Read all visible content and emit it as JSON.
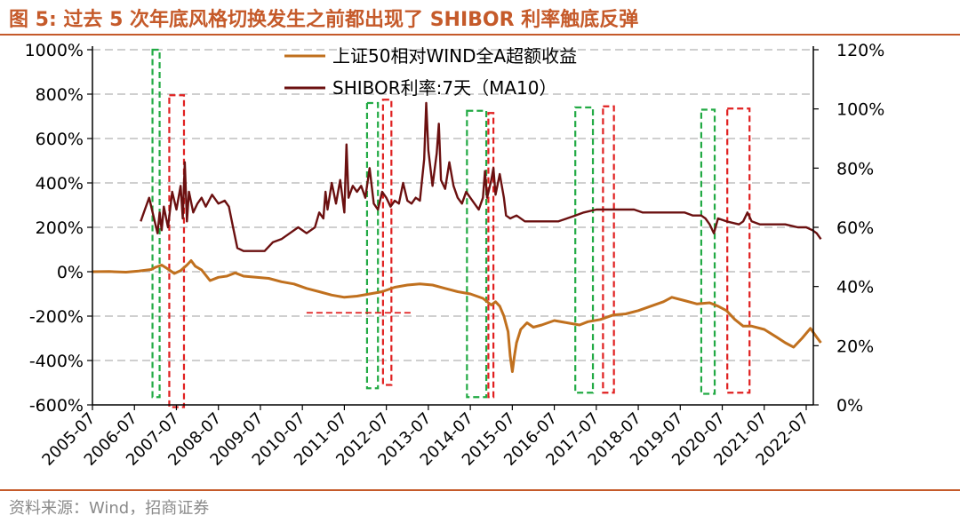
{
  "figure": {
    "title": "图 5:  过去 5 次年底风格切换发生之前都出现了 SHIBOR 利率触底反弹",
    "source": "资料来源：Wind，招商证券"
  },
  "colors": {
    "accent": "#c55a2a",
    "series_excess": "#c0701e",
    "series_shibor": "#6b1010",
    "box_green": "#22aa44",
    "box_red": "#e02020",
    "grid": "#bfbfbf"
  },
  "chart_data": {
    "type": "line",
    "left_axis": {
      "ticks": [
        "1000%",
        "800%",
        "600%",
        "400%",
        "200%",
        "0%",
        "-200%",
        "-400%",
        "-600%"
      ],
      "ylim": [
        -600,
        1000
      ]
    },
    "right_axis": {
      "ticks": [
        "120%",
        "100%",
        "80%",
        "60%",
        "40%",
        "20%",
        "0%"
      ],
      "ylim": [
        0,
        120
      ]
    },
    "x_ticks": [
      "2005-07",
      "2006-07",
      "2007-07",
      "2008-07",
      "2009-07",
      "2010-07",
      "2011-07",
      "2012-07",
      "2013-07",
      "2014-07",
      "2015-07",
      "2016-07",
      "2017-07",
      "2018-07",
      "2019-07",
      "2020-07",
      "2021-07",
      "2022-07"
    ],
    "grid": "horizontal dashed",
    "legend_position": "top-center",
    "series": [
      {
        "name": "上证50相对WIND全A超额收益",
        "axis": "left",
        "points": [
          [
            2005.5,
            0
          ],
          [
            2005.9,
            1
          ],
          [
            2006.3,
            -2
          ],
          [
            2006.6,
            3
          ],
          [
            2006.9,
            10
          ],
          [
            2007.0,
            20
          ],
          [
            2007.15,
            30
          ],
          [
            2007.3,
            12
          ],
          [
            2007.45,
            -8
          ],
          [
            2007.6,
            5
          ],
          [
            2007.75,
            30
          ],
          [
            2007.85,
            50
          ],
          [
            2007.95,
            25
          ],
          [
            2008.1,
            8
          ],
          [
            2008.3,
            -40
          ],
          [
            2008.5,
            -25
          ],
          [
            2008.7,
            -20
          ],
          [
            2008.9,
            -5
          ],
          [
            2009.1,
            -20
          ],
          [
            2009.4,
            -25
          ],
          [
            2009.7,
            -30
          ],
          [
            2010.0,
            -45
          ],
          [
            2010.3,
            -55
          ],
          [
            2010.6,
            -75
          ],
          [
            2010.9,
            -90
          ],
          [
            2011.2,
            -105
          ],
          [
            2011.5,
            -115
          ],
          [
            2011.8,
            -110
          ],
          [
            2012.1,
            -100
          ],
          [
            2012.4,
            -90
          ],
          [
            2012.7,
            -70
          ],
          [
            2013.0,
            -60
          ],
          [
            2013.3,
            -55
          ],
          [
            2013.6,
            -60
          ],
          [
            2013.9,
            -75
          ],
          [
            2014.2,
            -90
          ],
          [
            2014.5,
            -100
          ],
          [
            2014.8,
            -120
          ],
          [
            2015.0,
            -150
          ],
          [
            2015.1,
            -135
          ],
          [
            2015.2,
            -155
          ],
          [
            2015.3,
            -200
          ],
          [
            2015.4,
            -270
          ],
          [
            2015.45,
            -380
          ],
          [
            2015.5,
            -450
          ],
          [
            2015.55,
            -380
          ],
          [
            2015.6,
            -320
          ],
          [
            2015.7,
            -260
          ],
          [
            2015.85,
            -230
          ],
          [
            2016.0,
            -250
          ],
          [
            2016.2,
            -240
          ],
          [
            2016.5,
            -220
          ],
          [
            2016.8,
            -230
          ],
          [
            2017.1,
            -240
          ],
          [
            2017.3,
            -225
          ],
          [
            2017.6,
            -215
          ],
          [
            2017.9,
            -195
          ],
          [
            2018.2,
            -190
          ],
          [
            2018.5,
            -175
          ],
          [
            2018.8,
            -155
          ],
          [
            2019.1,
            -135
          ],
          [
            2019.3,
            -115
          ],
          [
            2019.6,
            -130
          ],
          [
            2019.9,
            -145
          ],
          [
            2020.2,
            -140
          ],
          [
            2020.4,
            -155
          ],
          [
            2020.6,
            -175
          ],
          [
            2020.8,
            -215
          ],
          [
            2021.0,
            -245
          ],
          [
            2021.2,
            -245
          ],
          [
            2021.5,
            -260
          ],
          [
            2021.8,
            -295
          ],
          [
            2022.0,
            -320
          ],
          [
            2022.2,
            -340
          ],
          [
            2022.4,
            -300
          ],
          [
            2022.6,
            -255
          ],
          [
            2022.75,
            -295
          ],
          [
            2022.85,
            -320
          ]
        ]
      },
      {
        "name": "SHIBOR利率:7天（MA10）",
        "axis": "right",
        "points": [
          [
            2006.65,
            62
          ],
          [
            2006.75,
            66
          ],
          [
            2006.85,
            70
          ],
          [
            2006.95,
            64
          ],
          [
            2007.05,
            58
          ],
          [
            2007.1,
            65
          ],
          [
            2007.15,
            59
          ],
          [
            2007.2,
            67
          ],
          [
            2007.3,
            60
          ],
          [
            2007.4,
            72
          ],
          [
            2007.5,
            66
          ],
          [
            2007.6,
            74
          ],
          [
            2007.65,
            63
          ],
          [
            2007.7,
            82
          ],
          [
            2007.75,
            62
          ],
          [
            2007.8,
            72
          ],
          [
            2007.9,
            65
          ],
          [
            2008.0,
            68
          ],
          [
            2008.1,
            70
          ],
          [
            2008.2,
            67
          ],
          [
            2008.35,
            71
          ],
          [
            2008.5,
            68
          ],
          [
            2008.65,
            69
          ],
          [
            2008.75,
            67
          ],
          [
            2008.85,
            60
          ],
          [
            2008.95,
            53
          ],
          [
            2009.1,
            52
          ],
          [
            2009.4,
            52
          ],
          [
            2009.6,
            52
          ],
          [
            2009.8,
            55
          ],
          [
            2010.0,
            56
          ],
          [
            2010.2,
            58
          ],
          [
            2010.4,
            60
          ],
          [
            2010.6,
            58
          ],
          [
            2010.8,
            60
          ],
          [
            2010.9,
            65
          ],
          [
            2011.0,
            63
          ],
          [
            2011.05,
            72
          ],
          [
            2011.1,
            66
          ],
          [
            2011.2,
            75
          ],
          [
            2011.3,
            68
          ],
          [
            2011.4,
            76
          ],
          [
            2011.5,
            65
          ],
          [
            2011.55,
            88
          ],
          [
            2011.6,
            70
          ],
          [
            2011.7,
            74
          ],
          [
            2011.8,
            72
          ],
          [
            2011.9,
            74
          ],
          [
            2012.0,
            70
          ],
          [
            2012.1,
            80
          ],
          [
            2012.2,
            68
          ],
          [
            2012.3,
            66
          ],
          [
            2012.4,
            72
          ],
          [
            2012.5,
            70
          ],
          [
            2012.6,
            67
          ],
          [
            2012.7,
            69
          ],
          [
            2012.8,
            68
          ],
          [
            2012.9,
            75
          ],
          [
            2013.0,
            69
          ],
          [
            2013.1,
            68
          ],
          [
            2013.2,
            70
          ],
          [
            2013.3,
            69
          ],
          [
            2013.4,
            83
          ],
          [
            2013.45,
            102
          ],
          [
            2013.5,
            86
          ],
          [
            2013.6,
            74
          ],
          [
            2013.7,
            85
          ],
          [
            2013.75,
            95
          ],
          [
            2013.8,
            76
          ],
          [
            2013.9,
            73
          ],
          [
            2014.0,
            82
          ],
          [
            2014.1,
            74
          ],
          [
            2014.2,
            70
          ],
          [
            2014.3,
            68
          ],
          [
            2014.4,
            72
          ],
          [
            2014.5,
            70
          ],
          [
            2014.6,
            68
          ],
          [
            2014.7,
            66
          ],
          [
            2014.8,
            70
          ],
          [
            2014.85,
            79
          ],
          [
            2014.9,
            70
          ],
          [
            2015.0,
            76
          ],
          [
            2015.05,
            80
          ],
          [
            2015.1,
            71
          ],
          [
            2015.2,
            78
          ],
          [
            2015.3,
            70
          ],
          [
            2015.35,
            64
          ],
          [
            2015.45,
            63
          ],
          [
            2015.6,
            64
          ],
          [
            2015.8,
            62
          ],
          [
            2016.0,
            62
          ],
          [
            2016.3,
            62
          ],
          [
            2016.6,
            62
          ],
          [
            2016.8,
            63
          ],
          [
            2017.0,
            64
          ],
          [
            2017.2,
            65
          ],
          [
            2017.5,
            66
          ],
          [
            2017.8,
            66
          ],
          [
            2018.0,
            66
          ],
          [
            2018.2,
            66
          ],
          [
            2018.4,
            66
          ],
          [
            2018.6,
            65
          ],
          [
            2018.8,
            65
          ],
          [
            2019.0,
            65
          ],
          [
            2019.3,
            65
          ],
          [
            2019.6,
            65
          ],
          [
            2019.8,
            64
          ],
          [
            2020.0,
            64
          ],
          [
            2020.1,
            63
          ],
          [
            2020.2,
            61
          ],
          [
            2020.3,
            58
          ],
          [
            2020.4,
            63
          ],
          [
            2020.6,
            62
          ],
          [
            2020.9,
            61
          ],
          [
            2021.0,
            62
          ],
          [
            2021.1,
            65
          ],
          [
            2021.2,
            62
          ],
          [
            2021.4,
            61
          ],
          [
            2021.7,
            61
          ],
          [
            2022.0,
            61
          ],
          [
            2022.3,
            60
          ],
          [
            2022.5,
            60
          ],
          [
            2022.65,
            59
          ],
          [
            2022.75,
            58
          ],
          [
            2022.85,
            56
          ]
        ]
      }
    ],
    "highlight_boxes": [
      {
        "color": "green",
        "x0": 2006.93,
        "x1": 2007.1,
        "y_top": 1000,
        "y_bottom": -565
      },
      {
        "color": "red",
        "x0": 2007.33,
        "x1": 2007.68,
        "y_top": 795,
        "y_bottom": -610
      },
      {
        "color": "green",
        "x0": 2012.04,
        "x1": 2012.3,
        "y_top": 760,
        "y_bottom": -525
      },
      {
        "color": "red",
        "x0": 2012.42,
        "x1": 2012.62,
        "y_top": 775,
        "y_bottom": -510
      },
      {
        "color": "green",
        "x0": 2014.42,
        "x1": 2014.88,
        "y_top": 725,
        "y_bottom": -565
      },
      {
        "color": "red",
        "x0": 2014.93,
        "x1": 2015.05,
        "y_top": 715,
        "y_bottom": -565
      },
      {
        "color": "green",
        "x0": 2017.0,
        "x1": 2017.42,
        "y_top": 740,
        "y_bottom": -545
      },
      {
        "color": "red",
        "x0": 2017.66,
        "x1": 2017.92,
        "y_top": 745,
        "y_bottom": -545
      },
      {
        "color": "green",
        "x0": 2020.0,
        "x1": 2020.32,
        "y_top": 730,
        "y_bottom": -550
      },
      {
        "color": "red",
        "x0": 2020.62,
        "x1": 2021.15,
        "y_top": 735,
        "y_bottom": -545
      }
    ],
    "annotation_lines": [
      {
        "color": "red",
        "x0": 2010.6,
        "x1": 2013.1,
        "y": -185
      }
    ]
  }
}
